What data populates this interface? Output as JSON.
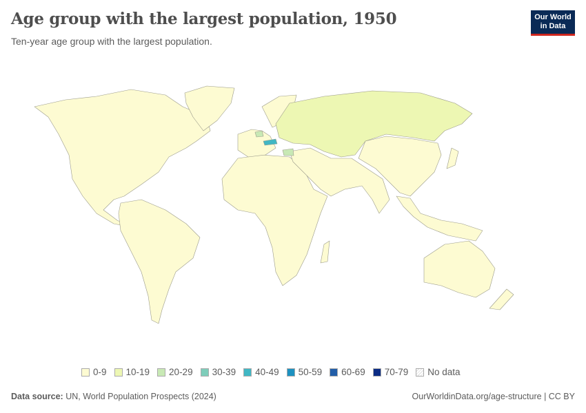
{
  "header": {
    "title": "Age group with the largest population, 1950",
    "subtitle": "Ten-year age group with the largest population.",
    "logo": "Our World in Data"
  },
  "legend": [
    {
      "label": "0-9",
      "color": "#fdfbd2"
    },
    {
      "label": "10-19",
      "color": "#edf7b3"
    },
    {
      "label": "20-29",
      "color": "#c8e9b5"
    },
    {
      "label": "30-39",
      "color": "#7ecdba"
    },
    {
      "label": "40-49",
      "color": "#41b7c4"
    },
    {
      "label": "50-59",
      "color": "#1d91c0"
    },
    {
      "label": "60-69",
      "color": "#225ea8"
    },
    {
      "label": "70-79",
      "color": "#0c2c84"
    },
    {
      "label": "No data",
      "color": "pattern"
    }
  ],
  "map_regions": [
    {
      "region": "Americas",
      "group": "0-9"
    },
    {
      "region": "Africa",
      "group": "0-9"
    },
    {
      "region": "South & East Asia",
      "group": "0-9"
    },
    {
      "region": "Oceania",
      "group": "0-9"
    },
    {
      "region": "Western Europe",
      "group": "0-9"
    },
    {
      "region": "Russia, Central Asia & Eastern Europe",
      "group": "10-19"
    },
    {
      "region": "Belgium",
      "group": "20-29"
    },
    {
      "region": "Bulgaria",
      "group": "20-29"
    },
    {
      "region": "Austria",
      "group": "40-49"
    }
  ],
  "footer": {
    "source_label": "Data source:",
    "source": "UN, World Population Prospects (2024)",
    "link": "OurWorldinData.org/age-structure | CC BY"
  }
}
